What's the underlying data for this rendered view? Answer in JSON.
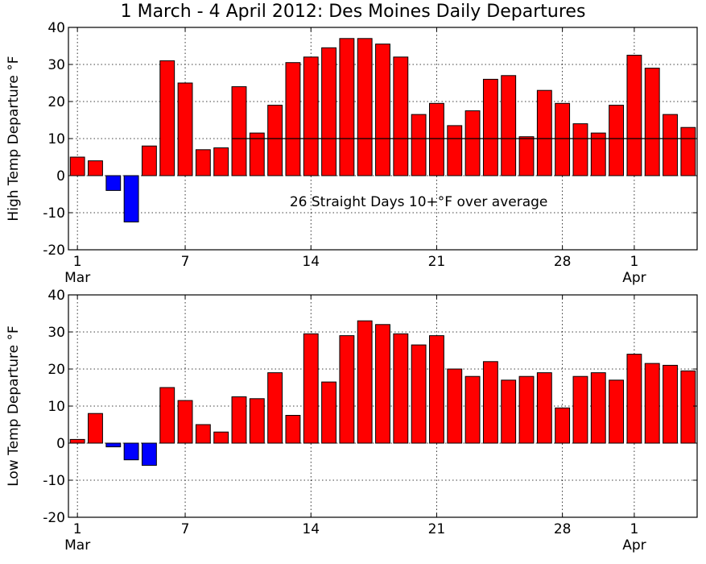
{
  "title": "1 March - 4 April 2012: Des Moines Daily Departures",
  "colors": {
    "positive": "#ff0000",
    "negative": "#0000ff",
    "edge": "#000000",
    "grid": "#000000"
  },
  "chart_data": [
    {
      "type": "bar",
      "ylabel": "High Temp Departure °F",
      "ylim": [
        -20,
        40
      ],
      "yticks": [
        -20,
        -10,
        0,
        10,
        20,
        30,
        40
      ],
      "x_ticks": [
        {
          "day": 1,
          "label": "1",
          "sublabel": "Mar"
        },
        {
          "day": 7,
          "label": "7",
          "sublabel": ""
        },
        {
          "day": 14,
          "label": "14",
          "sublabel": ""
        },
        {
          "day": 21,
          "label": "21",
          "sublabel": ""
        },
        {
          "day": 28,
          "label": "28",
          "sublabel": ""
        },
        {
          "day": 32,
          "label": "1",
          "sublabel": "Apr"
        }
      ],
      "dates": [
        "2012-03-01",
        "2012-03-02",
        "2012-03-03",
        "2012-03-04",
        "2012-03-05",
        "2012-03-06",
        "2012-03-07",
        "2012-03-08",
        "2012-03-09",
        "2012-03-10",
        "2012-03-11",
        "2012-03-12",
        "2012-03-13",
        "2012-03-14",
        "2012-03-15",
        "2012-03-16",
        "2012-03-17",
        "2012-03-18",
        "2012-03-19",
        "2012-03-20",
        "2012-03-21",
        "2012-03-22",
        "2012-03-23",
        "2012-03-24",
        "2012-03-25",
        "2012-03-26",
        "2012-03-27",
        "2012-03-28",
        "2012-03-29",
        "2012-03-30",
        "2012-03-31",
        "2012-04-01",
        "2012-04-02",
        "2012-04-03",
        "2012-04-04"
      ],
      "values": [
        5,
        4,
        -4,
        -12.5,
        8,
        31,
        25,
        7,
        7.5,
        24,
        11.5,
        19,
        30.5,
        32,
        34.5,
        37,
        37,
        35.5,
        32,
        16.5,
        19.5,
        13.5,
        17.5,
        26,
        27,
        10.5,
        23,
        19.5,
        14,
        11.5,
        19,
        32.5,
        29,
        16.5,
        13
      ],
      "reference_line": {
        "value": 10,
        "from_date": "2012-03-10",
        "to_date": "2012-04-04"
      },
      "annotation": {
        "text": "26 Straight Days 10+°F over average",
        "date": "2012-03-20",
        "y": -7
      },
      "grid": true
    },
    {
      "type": "bar",
      "ylabel": "Low Temp Departure °F",
      "ylim": [
        -20,
        40
      ],
      "yticks": [
        -20,
        -10,
        0,
        10,
        20,
        30,
        40
      ],
      "x_ticks": [
        {
          "day": 1,
          "label": "1",
          "sublabel": "Mar"
        },
        {
          "day": 7,
          "label": "7",
          "sublabel": ""
        },
        {
          "day": 14,
          "label": "14",
          "sublabel": ""
        },
        {
          "day": 21,
          "label": "21",
          "sublabel": ""
        },
        {
          "day": 28,
          "label": "28",
          "sublabel": ""
        },
        {
          "day": 32,
          "label": "1",
          "sublabel": "Apr"
        }
      ],
      "dates": [
        "2012-03-01",
        "2012-03-02",
        "2012-03-03",
        "2012-03-04",
        "2012-03-05",
        "2012-03-06",
        "2012-03-07",
        "2012-03-08",
        "2012-03-09",
        "2012-03-10",
        "2012-03-11",
        "2012-03-12",
        "2012-03-13",
        "2012-03-14",
        "2012-03-15",
        "2012-03-16",
        "2012-03-17",
        "2012-03-18",
        "2012-03-19",
        "2012-03-20",
        "2012-03-21",
        "2012-03-22",
        "2012-03-23",
        "2012-03-24",
        "2012-03-25",
        "2012-03-26",
        "2012-03-27",
        "2012-03-28",
        "2012-03-29",
        "2012-03-30",
        "2012-03-31",
        "2012-04-01",
        "2012-04-02",
        "2012-04-03",
        "2012-04-04"
      ],
      "values": [
        1,
        8,
        -1,
        -4.5,
        -6,
        15,
        11.5,
        5,
        3,
        12.5,
        12,
        19,
        7.5,
        29.5,
        16.5,
        29,
        33,
        32,
        29.5,
        26.5,
        29,
        20,
        18,
        22,
        17,
        18,
        19,
        9.5,
        18,
        19,
        17,
        24,
        21.5,
        21,
        19.5
      ],
      "grid": true
    }
  ]
}
